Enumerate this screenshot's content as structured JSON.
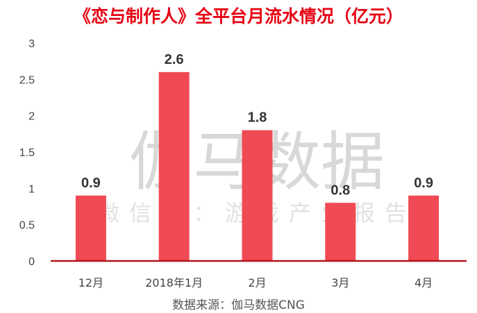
{
  "chart_data": {
    "type": "bar",
    "title": "《恋与制作人》全平台月流水情况（亿元）",
    "categories": [
      "12月",
      "2018年1月",
      "2月",
      "3月",
      "4月"
    ],
    "values": [
      0.9,
      2.6,
      1.8,
      0.8,
      0.9
    ],
    "data_labels": [
      "0.9",
      "2.6",
      "1.8",
      "0.8",
      "0.9"
    ],
    "yticks": [
      "0",
      "0.5",
      "1",
      "1.5",
      "2",
      "2.5",
      "3"
    ],
    "ylim": [
      0,
      3
    ],
    "xlabel": "",
    "ylabel": "",
    "grid": false,
    "legend": "none",
    "bar_color": "#f04a54",
    "axis_color": "#b0151e",
    "title_color": "#e60012",
    "source": "数据来源：伽马数据CNG",
    "watermark": "伽马数据",
    "watermark_sub": "微信号：游戏产业报告"
  }
}
